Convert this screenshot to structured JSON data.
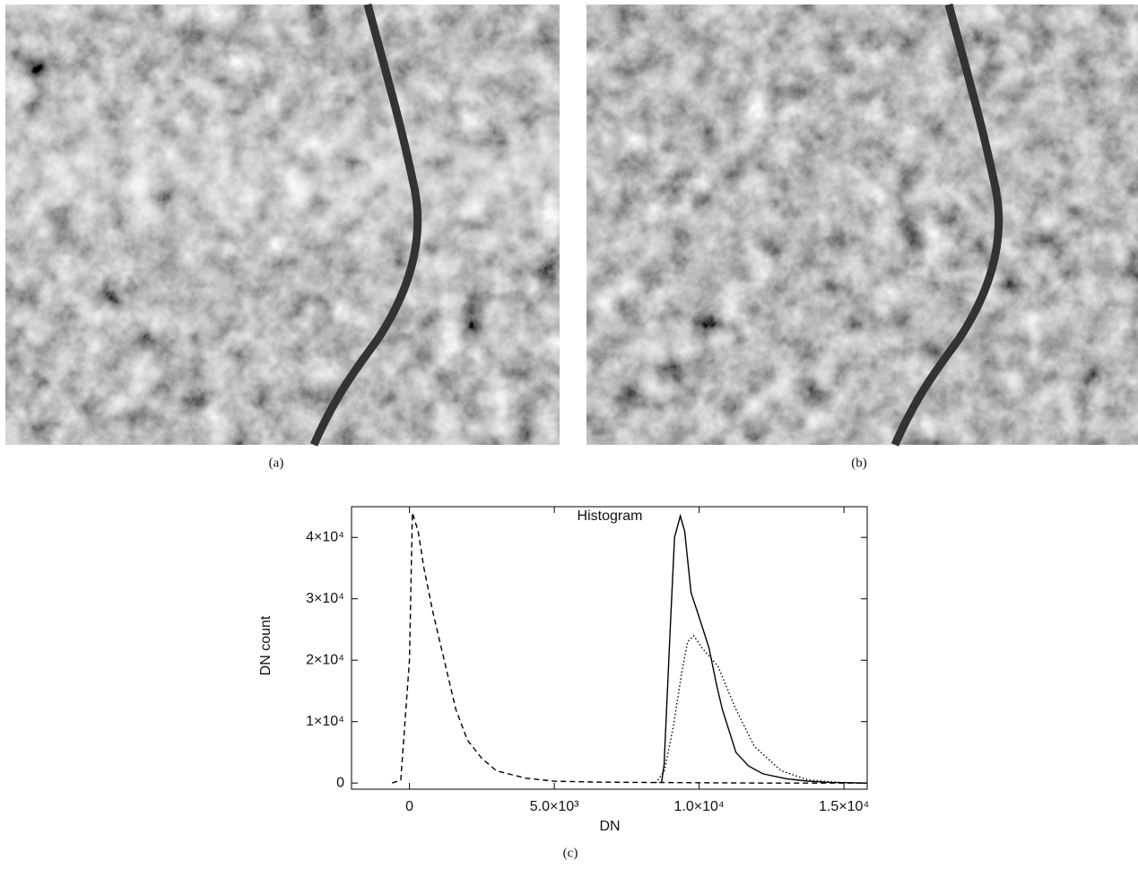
{
  "captions": [
    "(a)",
    "(b)",
    "(c)"
  ],
  "chart_data": {
    "type": "line",
    "title": "Histogram",
    "xlabel": "DN",
    "ylabel": "DN count",
    "xlim": [
      -2000,
      15800
    ],
    "ylim": [
      -1000,
      45000
    ],
    "xticks": [
      0,
      {
        "value": 5000,
        "label": "5.0×10³"
      },
      {
        "value": 10000,
        "label": "1.0×10⁴"
      },
      {
        "value": 15000,
        "label": "1.5×10⁴"
      }
    ],
    "yticks": [
      0,
      {
        "value": 10000,
        "label": "1×10⁴"
      },
      {
        "value": 20000,
        "label": "2×10⁴"
      },
      {
        "value": 30000,
        "label": "3×10⁴"
      },
      {
        "value": 40000,
        "label": "4×10⁴"
      }
    ],
    "series": [
      {
        "color": "#000000",
        "dash": "solid",
        "x": [
          8700,
          8790,
          9000,
          9150,
          9350,
          9500,
          9720,
          10000,
          10340,
          10600,
          10800,
          11270,
          11700,
          12200,
          13000,
          13760,
          14500,
          15800
        ],
        "values": [
          0,
          3000,
          25000,
          40000,
          43500,
          41000,
          31000,
          27000,
          22000,
          16000,
          12000,
          5000,
          2800,
          1500,
          700,
          300,
          100,
          0
        ]
      },
      {
        "color": "#000000",
        "dash": "dashed",
        "x": [
          -600,
          -300,
          0,
          100,
          300,
          500,
          800,
          1200,
          1600,
          2000,
          2500,
          3000,
          4000,
          5000,
          6500,
          8000,
          10000,
          12000,
          15800
        ],
        "values": [
          0,
          500,
          20000,
          44000,
          41000,
          35000,
          28000,
          20000,
          12000,
          7000,
          4000,
          2000,
          800,
          300,
          150,
          100,
          50,
          0,
          0
        ]
      },
      {
        "color": "#000000",
        "dash": "dotted",
        "x": [
          8500,
          8800,
          9100,
          9400,
          9600,
          9810,
          10100,
          10650,
          11270,
          11900,
          12830,
          13760,
          14800,
          15800
        ],
        "values": [
          0,
          2000,
          9000,
          18000,
          23000,
          24000,
          22000,
          19000,
          12000,
          6000,
          2000,
          500,
          100,
          0
        ]
      }
    ]
  }
}
